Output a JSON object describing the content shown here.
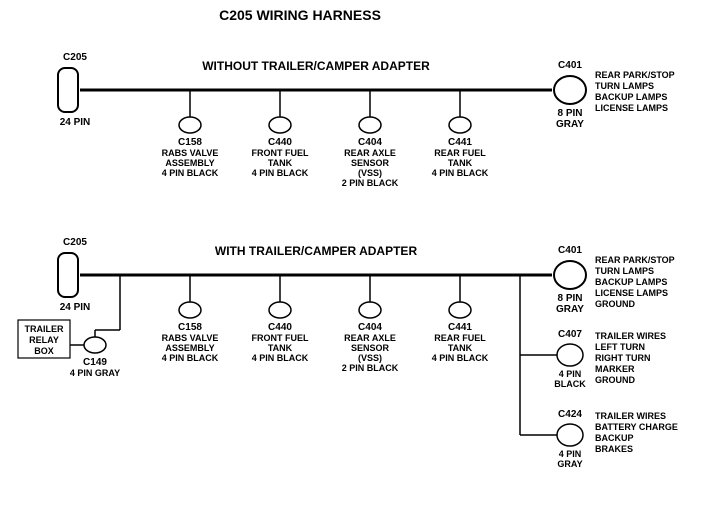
{
  "title": "C205 WIRING HARNESS",
  "colors": {
    "stroke": "#000000",
    "fill": "#ffffff",
    "text": "#000000",
    "bg": "#ffffff"
  },
  "stroke_width": {
    "trunk": 3,
    "branch": 1.5,
    "shape": 1.5
  },
  "harness": [
    {
      "subtitle": "WITHOUT  TRAILER/CAMPER  ADAPTER",
      "left": {
        "id": "C205",
        "pins": "24 PIN"
      },
      "right": {
        "id": "C401",
        "pins_top": "8 PIN",
        "pins_bottom": "GRAY",
        "lines": [
          "REAR PARK/STOP",
          "TURN LAMPS",
          "BACKUP LAMPS",
          "LICENSE LAMPS"
        ]
      },
      "branches": [
        {
          "id": "C158",
          "lines": [
            "RABS VALVE",
            "ASSEMBLY",
            "4 PIN BLACK"
          ]
        },
        {
          "id": "C440",
          "lines": [
            "FRONT FUEL",
            "TANK",
            "4 PIN BLACK"
          ]
        },
        {
          "id": "C404",
          "lines": [
            "REAR AXLE",
            "SENSOR",
            "(VSS)",
            "2 PIN BLACK"
          ]
        },
        {
          "id": "C441",
          "lines": [
            "REAR FUEL",
            "TANK",
            "4 PIN BLACK"
          ]
        }
      ]
    },
    {
      "subtitle": "WITH TRAILER/CAMPER  ADAPTER",
      "left": {
        "id": "C205",
        "pins": "24 PIN"
      },
      "right": {
        "id": "C401",
        "pins_top": "8 PIN",
        "pins_bottom": "GRAY",
        "lines": [
          "REAR PARK/STOP",
          "TURN LAMPS",
          "BACKUP LAMPS",
          "LICENSE LAMPS",
          "GROUND"
        ]
      },
      "extra_left": {
        "box": [
          "TRAILER",
          "RELAY",
          "BOX"
        ],
        "id": "C149",
        "pins": "4 PIN GRAY"
      },
      "branches": [
        {
          "id": "C158",
          "lines": [
            "RABS VALVE",
            "ASSEMBLY",
            "4 PIN BLACK"
          ]
        },
        {
          "id": "C440",
          "lines": [
            "FRONT FUEL",
            "TANK",
            "4 PIN BLACK"
          ]
        },
        {
          "id": "C404",
          "lines": [
            "REAR AXLE",
            "SENSOR",
            "(VSS)",
            "2 PIN BLACK"
          ]
        },
        {
          "id": "C441",
          "lines": [
            "REAR FUEL",
            "TANK",
            "4 PIN BLACK"
          ]
        }
      ],
      "extra_right": [
        {
          "id": "C407",
          "pins": [
            "4 PIN",
            "BLACK"
          ],
          "lines": [
            "TRAILER WIRES",
            "LEFT TURN",
            "RIGHT TURN",
            "MARKER",
            "GROUND"
          ]
        },
        {
          "id": "C424",
          "pins": [
            "4 PIN",
            "GRAY"
          ],
          "lines": [
            "TRAILER  WIRES",
            "BATTERY CHARGE",
            "BACKUP",
            "BRAKES"
          ]
        }
      ]
    }
  ]
}
